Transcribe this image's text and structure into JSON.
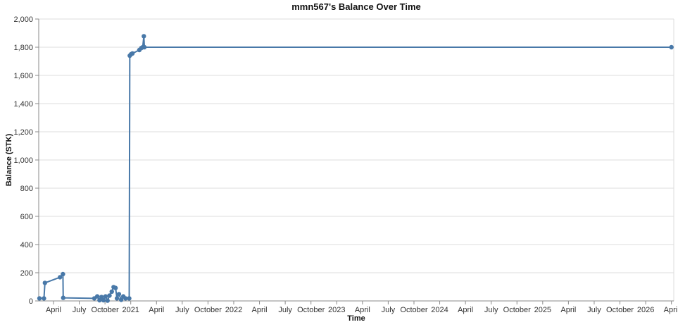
{
  "chart_data": {
    "type": "line",
    "title": "mmn567's Balance Over Time",
    "xlabel": "Time",
    "ylabel": "Balance (STK)",
    "ylim": [
      0,
      2000
    ],
    "y_tick_step": 200,
    "y_tick_labels": [
      "0",
      "200",
      "400",
      "600",
      "800",
      "1,000",
      "1,200",
      "1,400",
      "1,600",
      "1,800",
      "2,000"
    ],
    "x_tick_labels": [
      "April",
      "July",
      "October",
      "2021",
      "April",
      "July",
      "October",
      "2022",
      "April",
      "July",
      "October",
      "2023",
      "April",
      "July",
      "October",
      "2024",
      "April",
      "July",
      "October",
      "2025",
      "April",
      "July",
      "October",
      "2026",
      "April"
    ],
    "x_tick_months_since_apr2020": [
      0,
      3,
      6,
      9,
      12,
      15,
      18,
      21,
      24,
      27,
      30,
      33,
      36,
      39,
      42,
      45,
      48,
      51,
      54,
      57,
      60,
      63,
      66,
      69,
      72
    ],
    "grid": "horizontal-only",
    "legend": "none",
    "line_color": "#4878a8",
    "axis_color": "#8a8a8a",
    "grid_color": "#dddddd",
    "tick_label_color": "#333333",
    "series": [
      {
        "name": "mmn567 balance",
        "points": [
          {
            "date": "2020-02-12",
            "value": 18
          },
          {
            "date": "2020-02-28",
            "value": 18
          },
          {
            "date": "2020-03-01",
            "value": 128
          },
          {
            "date": "2020-04-24",
            "value": 168
          },
          {
            "date": "2020-05-04",
            "value": 190
          },
          {
            "date": "2020-05-05",
            "value": 22
          },
          {
            "date": "2020-08-24",
            "value": 18
          },
          {
            "date": "2020-09-04",
            "value": 32
          },
          {
            "date": "2020-09-12",
            "value": 5
          },
          {
            "date": "2020-09-19",
            "value": 28
          },
          {
            "date": "2020-09-26",
            "value": 5
          },
          {
            "date": "2020-10-03",
            "value": 32
          },
          {
            "date": "2020-10-10",
            "value": 2
          },
          {
            "date": "2020-10-17",
            "value": 38
          },
          {
            "date": "2020-10-25",
            "value": 66
          },
          {
            "date": "2020-11-01",
            "value": 98
          },
          {
            "date": "2020-11-08",
            "value": 92
          },
          {
            "date": "2020-11-13",
            "value": 18
          },
          {
            "date": "2020-11-20",
            "value": 48
          },
          {
            "date": "2020-11-28",
            "value": 8
          },
          {
            "date": "2020-12-05",
            "value": 32
          },
          {
            "date": "2020-12-13",
            "value": 18
          },
          {
            "date": "2020-12-26",
            "value": 18
          },
          {
            "date": "2020-12-28",
            "value": 1740
          },
          {
            "date": "2021-01-02",
            "value": 1750
          },
          {
            "date": "2021-01-07",
            "value": 1756
          },
          {
            "date": "2021-02-01",
            "value": 1780
          },
          {
            "date": "2021-02-08",
            "value": 1794
          },
          {
            "date": "2021-02-13",
            "value": 1800
          },
          {
            "date": "2021-02-17",
            "value": 1878
          },
          {
            "date": "2021-02-19",
            "value": 1800
          },
          {
            "date": "2026-04-01",
            "value": 1800
          }
        ]
      }
    ]
  }
}
